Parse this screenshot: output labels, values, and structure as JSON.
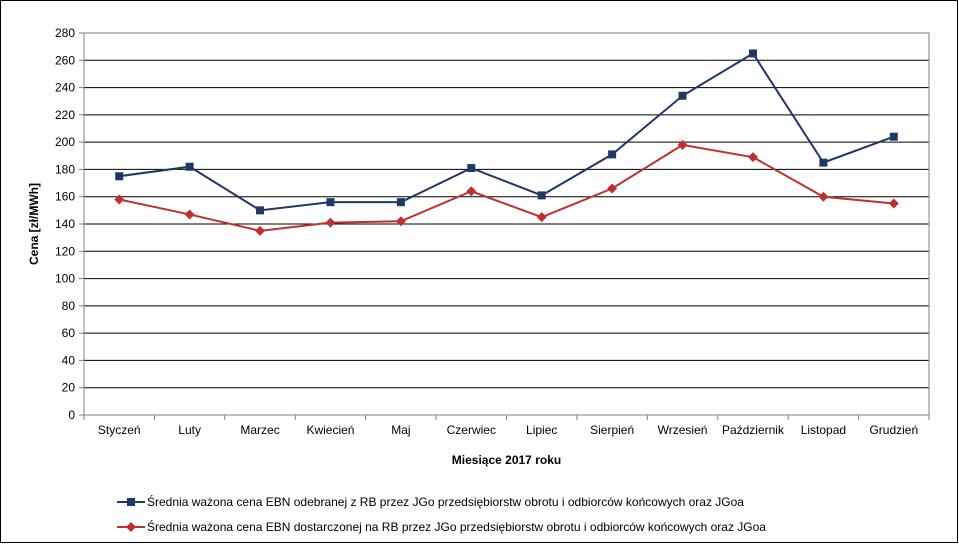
{
  "chart_data": {
    "type": "line",
    "categories": [
      "Styczeń",
      "Luty",
      "Marzec",
      "Kwiecień",
      "Maj",
      "Czerwiec",
      "Lipiec",
      "Sierpień",
      "Wrzesień",
      "Październik",
      "Listopad",
      "Grudzień"
    ],
    "series": [
      {
        "name": "Średnia ważona cena EBN odebranej z RB przez JGo przedsiębiorstw obrotu i odbiorców końcowych oraz JGoa",
        "values": [
          175,
          182,
          150,
          156,
          156,
          181,
          161,
          191,
          234,
          265,
          185,
          204
        ],
        "color": "#1f3864",
        "marker": "square"
      },
      {
        "name": "Średnia ważona cena EBN dostarczonej na RB przez JGo przedsiębiorstw obrotu i odbiorców końcowych oraz JGoa",
        "values": [
          158,
          147,
          135,
          141,
          142,
          164,
          145,
          166,
          198,
          189,
          160,
          155
        ],
        "color": "#c0302e",
        "marker": "diamond"
      }
    ],
    "xlabel": "Miesiące 2017  roku",
    "ylabel": "Cena [zł/MWh]",
    "ylim": [
      0,
      280
    ],
    "yticks": [
      0,
      20,
      40,
      60,
      80,
      100,
      120,
      140,
      160,
      180,
      200,
      220,
      240,
      260,
      280
    ],
    "grid": true,
    "legend": "bottom"
  }
}
